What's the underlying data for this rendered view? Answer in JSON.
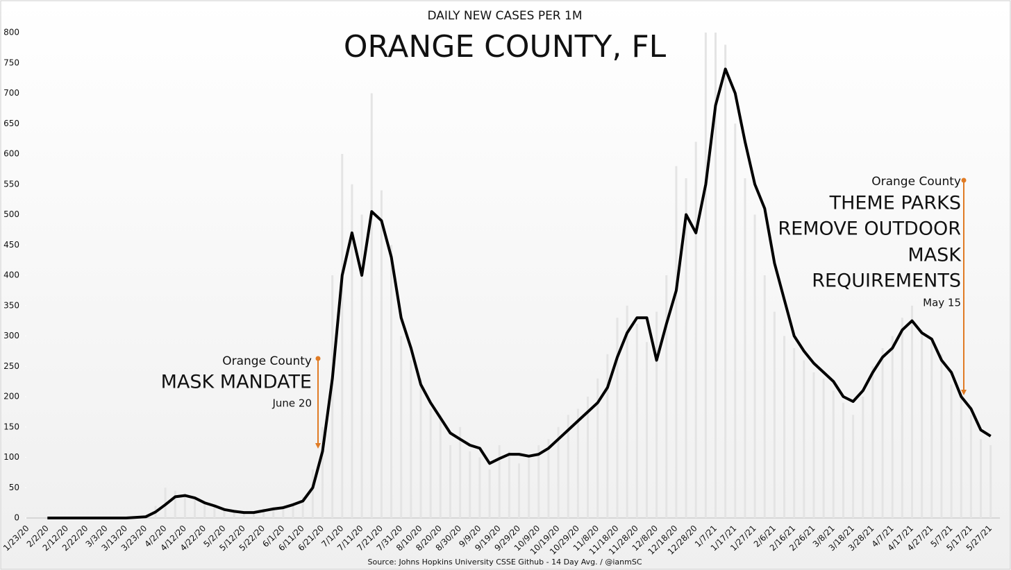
{
  "chart_data": {
    "type": "line",
    "title": "DAILY NEW CASES PER 1M",
    "subtitle": "ORANGE COUNTY, FL",
    "source": "Source: Johns Hopkins University CSSE Github - 14 Day Avg. / @ianmSC",
    "categories": [
      "1/23/20",
      null,
      "2/2/20",
      null,
      "2/12/20",
      null,
      "2/22/20",
      null,
      "3/3/20",
      null,
      "3/13/20",
      null,
      "3/23/20",
      null,
      "4/2/20",
      null,
      "4/12/20",
      null,
      "4/22/20",
      null,
      "5/2/20",
      null,
      "5/12/20",
      null,
      "5/22/20",
      null,
      "6/1/20",
      null,
      "6/11/20",
      null,
      "6/21/20",
      null,
      "7/1/20",
      null,
      "7/11/20",
      null,
      "7/21/20",
      null,
      "7/31/20",
      null,
      "8/10/20",
      null,
      "8/20/20",
      null,
      "8/30/20",
      null,
      "9/9/20",
      null,
      "9/19/20",
      null,
      "9/29/20",
      null,
      "10/9/20",
      null,
      "10/19/20",
      null,
      "10/29/20",
      null,
      "11/8/20",
      null,
      "11/18/20",
      null,
      "11/28/20",
      null,
      "12/8/20",
      null,
      "12/18/20",
      null,
      "12/28/20",
      null,
      "1/7/21",
      null,
      "1/17/21",
      null,
      "1/27/21",
      null,
      "2/6/21",
      null,
      "2/16/21",
      null,
      "2/26/21",
      null,
      "3/8/21",
      null,
      "3/18/21",
      null,
      "3/28/21",
      null,
      "4/7/21",
      null,
      "4/17/21",
      null,
      "4/27/21",
      null,
      "5/7/21",
      null,
      "5/17/21",
      null,
      "5/27/21"
    ],
    "bars": {
      "color": "#e4e4e4",
      "values": [
        0,
        0,
        0,
        0,
        0,
        0,
        0,
        0,
        0,
        0,
        0,
        2,
        5,
        20,
        50,
        45,
        40,
        30,
        25,
        20,
        15,
        10,
        8,
        10,
        15,
        18,
        20,
        25,
        35,
        80,
        150,
        400,
        600,
        550,
        500,
        700,
        540,
        450,
        300,
        260,
        230,
        180,
        170,
        120,
        150,
        110,
        100,
        80,
        120,
        110,
        90,
        100,
        120,
        130,
        150,
        170,
        180,
        200,
        230,
        270,
        330,
        350,
        320,
        290,
        340,
        400,
        580,
        560,
        620,
        800,
        800,
        780,
        650,
        560,
        500,
        400,
        340,
        300,
        280,
        260,
        240,
        230,
        210,
        190,
        170,
        200,
        250,
        280,
        300,
        330,
        350,
        310,
        290,
        270,
        220,
        200,
        170,
        130,
        120
      ]
    },
    "series": [
      {
        "color": "#000000",
        "values": [
          null,
          null,
          0,
          0,
          0,
          0,
          0,
          0,
          0,
          0,
          0,
          1,
          2,
          10,
          22,
          35,
          37,
          33,
          25,
          20,
          14,
          11,
          9,
          9,
          12,
          15,
          17,
          22,
          28,
          50,
          110,
          230,
          400,
          470,
          400,
          505,
          490,
          430,
          330,
          280,
          220,
          190,
          165,
          140,
          130,
          120,
          115,
          90,
          98,
          105,
          105,
          102,
          105,
          115,
          130,
          145,
          160,
          175,
          190,
          215,
          265,
          305,
          330,
          330,
          260,
          320,
          375,
          500,
          470,
          550,
          680,
          740,
          700,
          620,
          550,
          510,
          420,
          360,
          300,
          275,
          255,
          240,
          225,
          200,
          192,
          210,
          240,
          265,
          280,
          310,
          325,
          305,
          295,
          260,
          240,
          200,
          180,
          145,
          135
        ]
      }
    ],
    "ylim": [
      0,
      800
    ],
    "yticks": [
      0,
      50,
      100,
      150,
      200,
      250,
      300,
      350,
      400,
      450,
      500,
      550,
      600,
      650,
      700,
      750,
      800
    ],
    "annotation_color": "#e07b24",
    "annotations": [
      {
        "lines": [
          "Orange County",
          "MASK MANDATE",
          "June 20"
        ]
      },
      {
        "lines": [
          "Orange County",
          "THEME PARKS",
          "REMOVE OUTDOOR",
          "MASK",
          "REQUIREMENTS",
          "May 15"
        ]
      }
    ]
  }
}
